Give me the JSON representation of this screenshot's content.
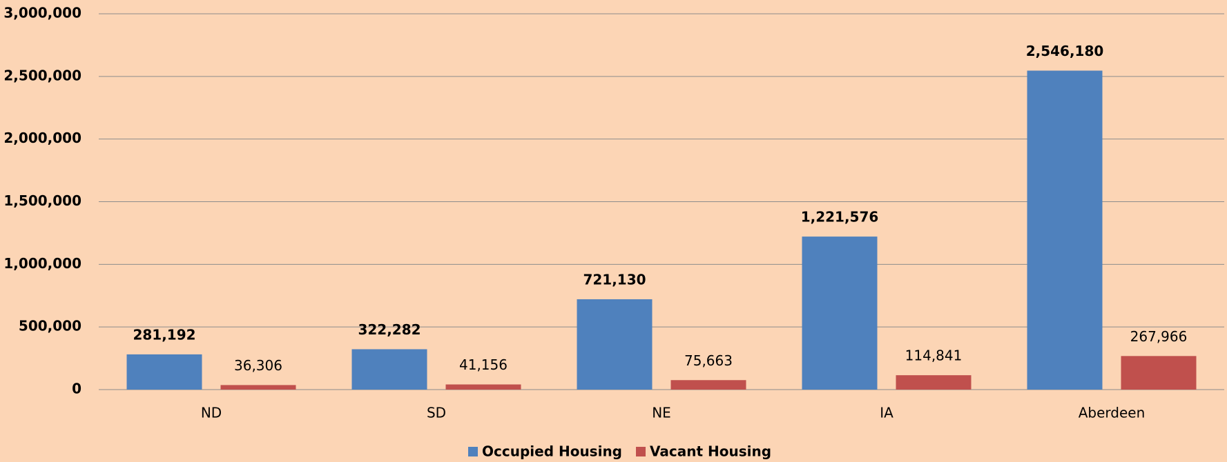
{
  "chart_data": {
    "type": "bar",
    "categories": [
      "ND",
      "SD",
      "NE",
      "IA",
      "Aberdeen"
    ],
    "series": [
      {
        "name": "Occupied Housing",
        "color": "#4f81bd",
        "values": [
          281192,
          322282,
          721130,
          1221576,
          2546180
        ],
        "value_labels": [
          "281,192",
          "322,282",
          "721,130",
          "1,221,576",
          "2,546,180"
        ]
      },
      {
        "name": "Vacant Housing",
        "color": "#c0504d",
        "values": [
          36306,
          41156,
          75663,
          114841,
          267966
        ],
        "value_labels": [
          "36,306",
          "41,156",
          "75,663",
          "114,841",
          "267,966"
        ]
      }
    ],
    "ylim": [
      0,
      3000000
    ],
    "yticks": [
      0,
      {
        "value": 500000,
        "label": "500,000"
      },
      {
        "value": 1000000,
        "label": "1,000,000"
      },
      {
        "value": 1500000,
        "label": "1,500,000"
      },
      {
        "value": 2000000,
        "label": "2,000,000"
      },
      {
        "value": 2500000,
        "label": "2,500,000"
      },
      {
        "value": 3000000,
        "label": "3,000,000"
      }
    ],
    "grid": true,
    "legend": "bottom"
  }
}
